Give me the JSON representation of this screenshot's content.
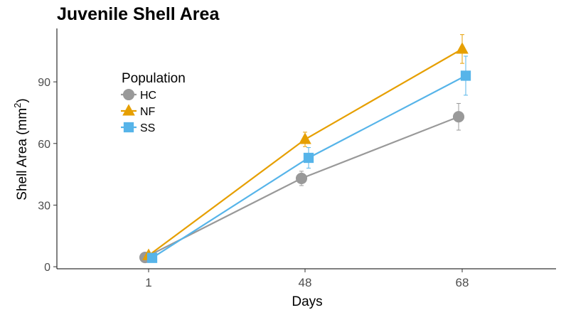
{
  "chart_data": {
    "type": "line",
    "title": "Juvenile Shell Area",
    "xlabel": "Days",
    "ylabel": "Shell Area (mm",
    "ylabel_sup": "2",
    "ylabel_close": ")",
    "categories": [
      "1",
      "48",
      "68"
    ],
    "ylim": [
      -1,
      116
    ],
    "yticks": [
      0,
      30,
      60,
      90
    ],
    "yticklabels": [
      "0",
      "30",
      "60",
      "90"
    ],
    "grid": false,
    "legend": {
      "title": "Population",
      "placement": "top-left"
    },
    "series": [
      {
        "name": "HC",
        "marker": "circle",
        "color": "#999999",
        "values": [
          4.5,
          43,
          73
        ],
        "err": [
          0.6,
          3.5,
          6.5
        ]
      },
      {
        "name": "NF",
        "marker": "triangle",
        "color": "#E69F00",
        "values": [
          5.5,
          62,
          106
        ],
        "err": [
          0.6,
          3.5,
          7
        ]
      },
      {
        "name": "SS",
        "marker": "square",
        "color": "#56B4E9",
        "values": [
          4.3,
          53,
          93
        ],
        "err": [
          0.6,
          5,
          9.5
        ]
      }
    ]
  }
}
